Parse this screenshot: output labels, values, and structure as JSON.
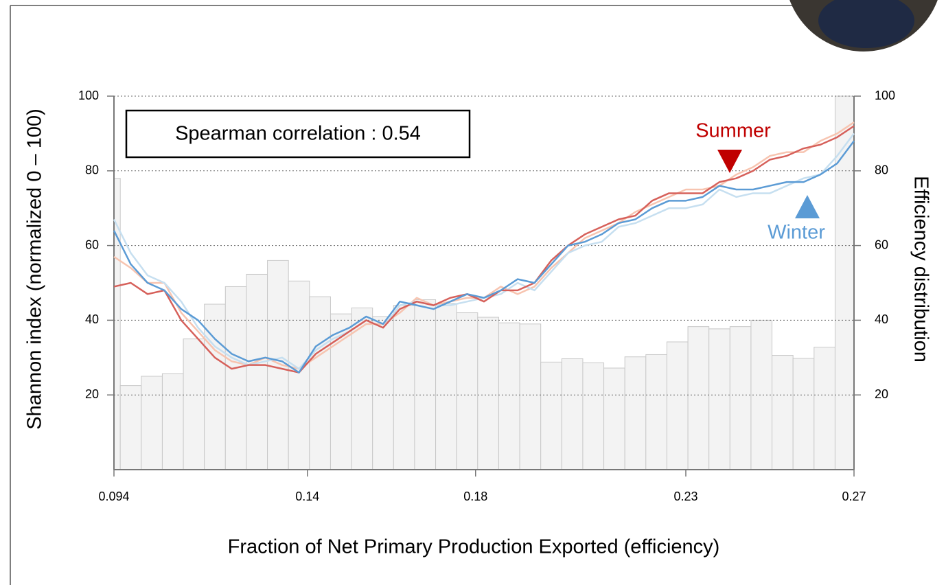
{
  "chart_data": {
    "type": "line",
    "box_text": "Spearman correlation : 0.54",
    "xlabel": "Fraction of Net Primary Production Exported (efficiency)",
    "ylabel": "Shannon index (normalized 0 – 100)",
    "y2label": "Efficiency distribution",
    "annotations": [
      {
        "text": "Summer",
        "color": "#c00000"
      },
      {
        "text": "Winter",
        "color": "#5b9bd5"
      }
    ],
    "xlim": [
      0.094,
      0.27
    ],
    "xticks": [
      0.094,
      0.14,
      0.18,
      0.23,
      0.27
    ],
    "ylim": [
      0,
      100
    ],
    "yticks": [
      20,
      40,
      60,
      80,
      100
    ],
    "y2lim": [
      0,
      100
    ],
    "y2ticks": [
      20,
      40,
      60,
      80,
      100
    ],
    "grid": true,
    "histogram": {
      "axis": "y2",
      "color": "#f3f3f3",
      "bins": [
        0.094,
        0.0955,
        0.1005,
        0.1055,
        0.1105,
        0.1155,
        0.1205,
        0.1255,
        0.1305,
        0.1355,
        0.1405,
        0.1455,
        0.1505,
        0.1555,
        0.1605,
        0.1655,
        0.1705,
        0.1755,
        0.1805,
        0.1855,
        0.1905,
        0.1955,
        0.2005,
        0.2055,
        0.2105,
        0.2155,
        0.2205,
        0.2255,
        0.2305,
        0.2355,
        0.2405,
        0.2455,
        0.2505,
        0.2555,
        0.2605,
        0.2655,
        0.27
      ],
      "counts": [
        78,
        22.5,
        25,
        25.7,
        35,
        44.3,
        49,
        52.3,
        56,
        50.5,
        46.3,
        41.7,
        43.3,
        41,
        44,
        45.5,
        44.5,
        42,
        40.8,
        39.3,
        39,
        28.8,
        29.7,
        28.6,
        27.2,
        30.2,
        30.8,
        34.2,
        38.3,
        37.7,
        38.3,
        40,
        30.6,
        29.8,
        32.8,
        100
      ]
    },
    "x": [
      0.094,
      0.098,
      0.102,
      0.106,
      0.11,
      0.114,
      0.118,
      0.122,
      0.126,
      0.13,
      0.134,
      0.138,
      0.142,
      0.146,
      0.15,
      0.154,
      0.158,
      0.162,
      0.166,
      0.17,
      0.174,
      0.178,
      0.182,
      0.186,
      0.19,
      0.194,
      0.198,
      0.202,
      0.206,
      0.21,
      0.214,
      0.218,
      0.222,
      0.226,
      0.23,
      0.234,
      0.238,
      0.242,
      0.246,
      0.25,
      0.254,
      0.258,
      0.262,
      0.266,
      0.27
    ],
    "series": [
      {
        "color": "#f7c4b0",
        "values": [
          57,
          54,
          50,
          50,
          42,
          37,
          32,
          29,
          28,
          30,
          28,
          27,
          30,
          33,
          36,
          39,
          39,
          42,
          46,
          44,
          45,
          46,
          46,
          49,
          47,
          49,
          54,
          58,
          62,
          64,
          66,
          69,
          71,
          73,
          75,
          75,
          76,
          79,
          81,
          84,
          85,
          85,
          88,
          90,
          93
        ]
      },
      {
        "color": "#c6dff0",
        "values": [
          67,
          58,
          52,
          50,
          45,
          38,
          33,
          30,
          28,
          29,
          30,
          27,
          32,
          35,
          37,
          40,
          38,
          44,
          45,
          44,
          44,
          45,
          46,
          47,
          50,
          48,
          53,
          58,
          60,
          61,
          65,
          66,
          68,
          70,
          70,
          71,
          75,
          73,
          74,
          74,
          76,
          78,
          79,
          84,
          90
        ]
      },
      {
        "color": "#d6605a",
        "values": [
          49,
          50,
          47,
          48,
          40,
          35,
          30,
          27,
          28,
          28,
          27,
          26,
          31,
          34,
          37,
          40,
          38,
          43,
          45,
          44,
          46,
          47,
          45,
          48,
          48,
          50,
          56,
          60,
          63,
          65,
          67,
          68,
          72,
          74,
          74,
          74,
          77,
          78,
          80,
          83,
          84,
          86,
          87,
          89,
          92
        ]
      },
      {
        "color": "#5b9bd5",
        "values": [
          64,
          55,
          50,
          48,
          43,
          40,
          35,
          31,
          29,
          30,
          29,
          26,
          33,
          36,
          38,
          41,
          39,
          45,
          44,
          43,
          45,
          47,
          46,
          48,
          51,
          50,
          55,
          60,
          61,
          63,
          66,
          67,
          70,
          72,
          72,
          73,
          76,
          75,
          75,
          76,
          77,
          77,
          79,
          82,
          88
        ]
      }
    ]
  }
}
